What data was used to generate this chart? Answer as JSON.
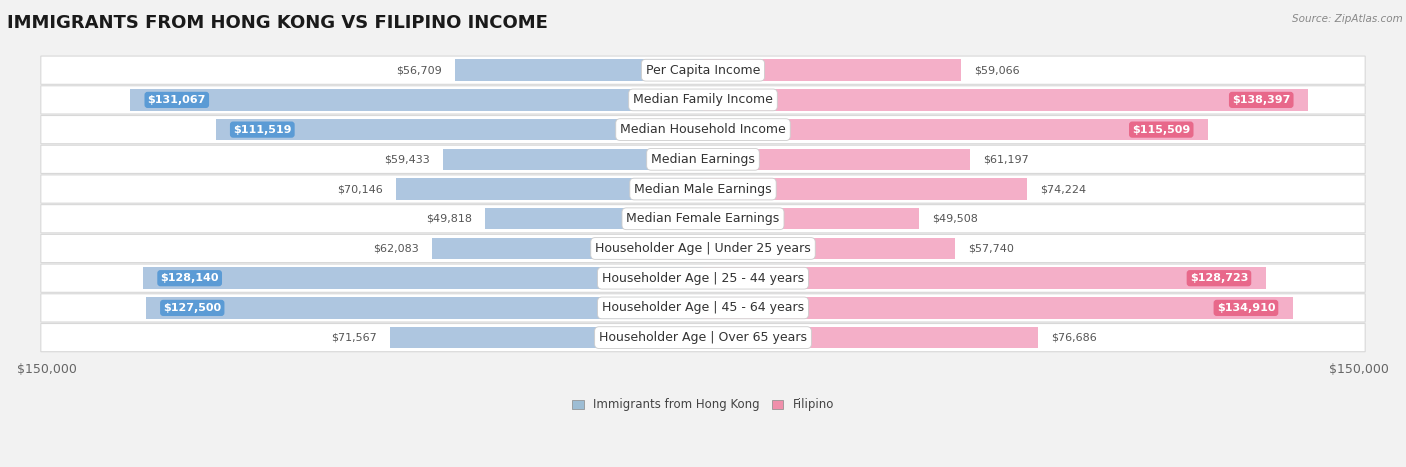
{
  "title": "IMMIGRANTS FROM HONG KONG VS FILIPINO INCOME",
  "source": "Source: ZipAtlas.com",
  "categories": [
    "Per Capita Income",
    "Median Family Income",
    "Median Household Income",
    "Median Earnings",
    "Median Male Earnings",
    "Median Female Earnings",
    "Householder Age | Under 25 years",
    "Householder Age | 25 - 44 years",
    "Householder Age | 45 - 64 years",
    "Householder Age | Over 65 years"
  ],
  "hk_values": [
    56709,
    131067,
    111519,
    59433,
    70146,
    49818,
    62083,
    128140,
    127500,
    71567
  ],
  "fil_values": [
    59066,
    138397,
    115509,
    61197,
    74224,
    49508,
    57740,
    128723,
    134910,
    76686
  ],
  "hk_bar_color": "#aec6e0",
  "hk_label_color": "#5b9bd5",
  "fil_bar_color": "#f4afc8",
  "fil_label_color": "#e8688a",
  "hk_legend_color": "#9dbdd4",
  "fil_legend_color": "#f08fab",
  "max_value": 150000,
  "bg_color": "#f2f2f2",
  "row_color": "#ffffff",
  "row_border_color": "#d8d8d8",
  "legend_hk": "Immigrants from Hong Kong",
  "legend_fil": "Filipino",
  "title_fontsize": 13,
  "label_fontsize": 9,
  "value_fontsize": 8,
  "axis_label_fontsize": 9,
  "inside_threshold": 95000
}
